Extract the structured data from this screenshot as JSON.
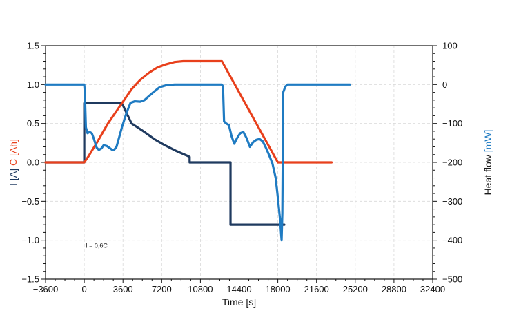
{
  "chart_data": {
    "type": "line",
    "x_axis": {
      "label": "Time [s]",
      "range": [
        -3600,
        32400
      ],
      "ticks": [
        -3600,
        0,
        3600,
        7200,
        10800,
        14400,
        18000,
        21600,
        25200,
        28800,
        32400
      ]
    },
    "y_left": {
      "label_parts": [
        {
          "text": "I [A]",
          "color": "#1f3a5f"
        },
        {
          "text": " C [Ah]",
          "color": "#e8401c"
        }
      ],
      "range": [
        -1.5,
        1.5
      ],
      "ticks": [
        -1.5,
        -1.0,
        -0.5,
        0.0,
        0.5,
        1.0,
        1.5
      ],
      "tick_labels": [
        "−1.5",
        "−1.0",
        "−0.5",
        "0.0",
        "0.5",
        "1.0",
        "1.5"
      ]
    },
    "y_right": {
      "label_parts": [
        {
          "text": "Heat flow ",
          "color": "#1a1a1a"
        },
        {
          "text": "[mW]",
          "color": "#1f7bc2"
        }
      ],
      "range": [
        -500,
        100
      ],
      "ticks": [
        -500,
        -400,
        -300,
        -200,
        -100,
        0,
        100
      ],
      "tick_labels": [
        "−500",
        "−400",
        "−300",
        "−200",
        "−100",
        "0",
        "100"
      ]
    },
    "grid": true,
    "annotation": {
      "text": "I = 0,6C",
      "x": 0,
      "y": -1.07
    },
    "series": [
      {
        "key": "current",
        "axis": "left",
        "color": "#1f3a5f",
        "points": [
          [
            -3600,
            0
          ],
          [
            0,
            0
          ],
          [
            0,
            0.76
          ],
          [
            3500,
            0.76
          ],
          [
            4400,
            0.5
          ],
          [
            5500,
            0.4
          ],
          [
            6500,
            0.3
          ],
          [
            7500,
            0.22
          ],
          [
            8500,
            0.15
          ],
          [
            9500,
            0.09
          ],
          [
            9800,
            0.07
          ],
          [
            9800,
            0
          ],
          [
            13600,
            0
          ],
          [
            13600,
            -0.8
          ],
          [
            18600,
            -0.8
          ]
        ]
      },
      {
        "key": "capacity",
        "axis": "left",
        "color": "#e8401c",
        "points": [
          [
            -3600,
            0
          ],
          [
            0,
            0
          ],
          [
            400,
            0.08
          ],
          [
            1200,
            0.26
          ],
          [
            2200,
            0.5
          ],
          [
            3000,
            0.66
          ],
          [
            3600,
            0.78
          ],
          [
            4400,
            0.94
          ],
          [
            5200,
            1.06
          ],
          [
            6000,
            1.15
          ],
          [
            6800,
            1.22
          ],
          [
            7600,
            1.26
          ],
          [
            8400,
            1.29
          ],
          [
            9200,
            1.3
          ],
          [
            12800,
            1.3
          ],
          [
            18000,
            0
          ],
          [
            23000,
            0
          ]
        ]
      },
      {
        "key": "heat_flow",
        "axis": "right",
        "color": "#1f7bc2",
        "points": [
          [
            -3600,
            0
          ],
          [
            0,
            0
          ],
          [
            50,
            -20
          ],
          [
            150,
            -110
          ],
          [
            300,
            -125
          ],
          [
            500,
            -122
          ],
          [
            700,
            -125
          ],
          [
            900,
            -140
          ],
          [
            1150,
            -162
          ],
          [
            1350,
            -168
          ],
          [
            1600,
            -164
          ],
          [
            1800,
            -156
          ],
          [
            2100,
            -158
          ],
          [
            2400,
            -164
          ],
          [
            2600,
            -168
          ],
          [
            2800,
            -167
          ],
          [
            3000,
            -160
          ],
          [
            3200,
            -140
          ],
          [
            3500,
            -110
          ],
          [
            3900,
            -75
          ],
          [
            4300,
            -47
          ],
          [
            4700,
            -43
          ],
          [
            5200,
            -44
          ],
          [
            5600,
            -40
          ],
          [
            6000,
            -30
          ],
          [
            6500,
            -18
          ],
          [
            7000,
            -7
          ],
          [
            7600,
            -2
          ],
          [
            8400,
            0
          ],
          [
            12800,
            0
          ],
          [
            12900,
            -5
          ],
          [
            13000,
            -95
          ],
          [
            13200,
            -100
          ],
          [
            13450,
            -104
          ],
          [
            13700,
            -133
          ],
          [
            13950,
            -152
          ],
          [
            14200,
            -138
          ],
          [
            14500,
            -125
          ],
          [
            14800,
            -122
          ],
          [
            15100,
            -138
          ],
          [
            15400,
            -160
          ],
          [
            15700,
            -148
          ],
          [
            16000,
            -142
          ],
          [
            16300,
            -140
          ],
          [
            16600,
            -146
          ],
          [
            16900,
            -163
          ],
          [
            17200,
            -182
          ],
          [
            17500,
            -203
          ],
          [
            17800,
            -240
          ],
          [
            18000,
            -290
          ],
          [
            18200,
            -345
          ],
          [
            18350,
            -400
          ],
          [
            18420,
            -330
          ],
          [
            18500,
            -20
          ],
          [
            18700,
            -5
          ],
          [
            18900,
            0
          ],
          [
            24700,
            0
          ]
        ]
      }
    ]
  }
}
